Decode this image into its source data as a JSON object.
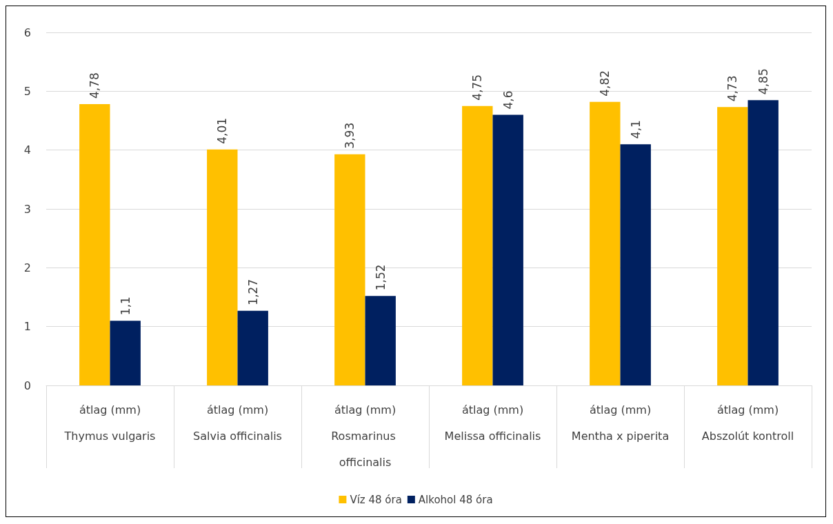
{
  "chart_data": {
    "type": "bar",
    "categories": [
      "átlag (mm)\nThymus vulgaris",
      "átlag (mm)\nSalvia officinalis",
      "átlag (mm)\nRosmarinus officinalis",
      "átlag (mm)\nMelissa officinalis",
      "átlag (mm)\nMentha x piperita",
      "átlag (mm)\nAbszolút kontroll"
    ],
    "series": [
      {
        "name": "Víz 48 óra",
        "color": "#ffc000",
        "values": [
          4.78,
          4.01,
          3.93,
          4.75,
          4.82,
          4.73
        ],
        "value_labels": [
          "4,78",
          "4,01",
          "3,93",
          "4,75",
          "4,82",
          "4,73"
        ]
      },
      {
        "name": "Alkohol 48 óra",
        "color": "#002060",
        "values": [
          1.1,
          1.27,
          1.52,
          4.6,
          4.1,
          4.85
        ],
        "value_labels": [
          "1,1",
          "1,27",
          "1,52",
          "4,6",
          "4,1",
          "4,85"
        ]
      }
    ],
    "ylim": [
      0,
      6
    ],
    "yticks": [
      0,
      1,
      2,
      3,
      4,
      5,
      6
    ],
    "grid": "y",
    "legend": "bottom"
  }
}
